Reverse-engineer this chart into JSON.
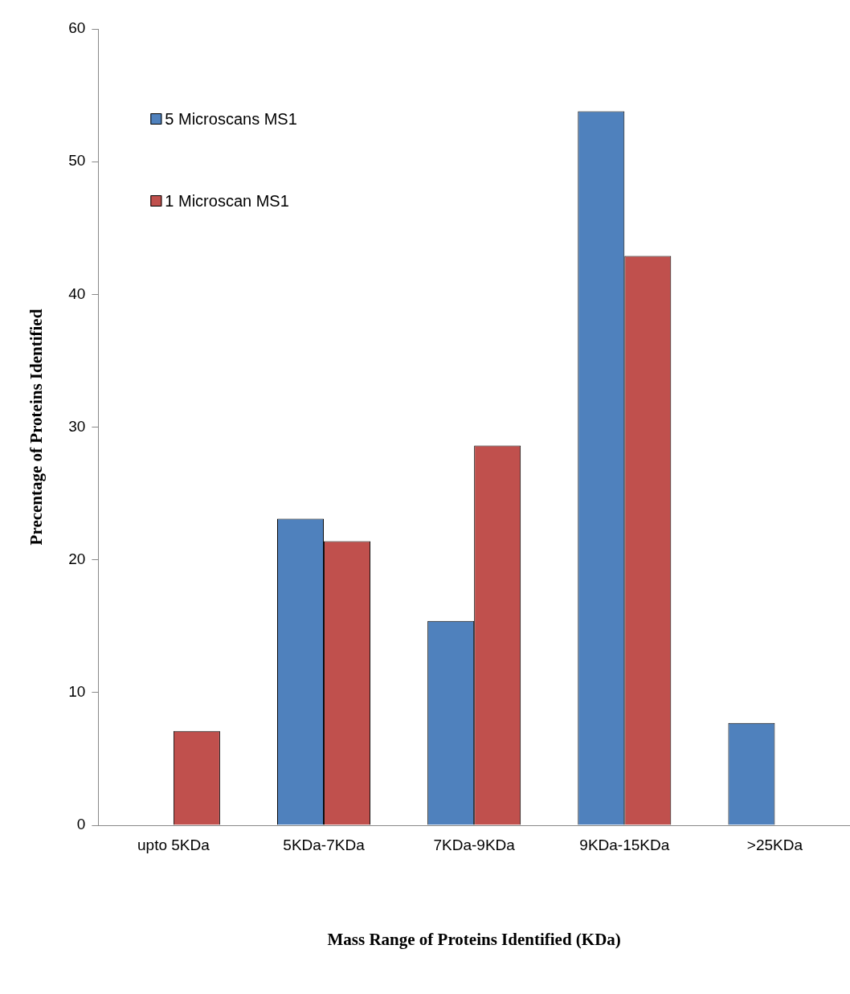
{
  "chart_data": {
    "type": "bar",
    "xlabel": "Mass Range of Proteins Identified (KDa)",
    "ylabel": "Precentage of Proteins Identified",
    "categories": [
      "upto 5KDa",
      "5KDa-7KDa",
      "7KDa-9KDa",
      "9KDa-15KDa",
      ">25KDa"
    ],
    "series": [
      {
        "name": "5 Microscans MS1",
        "color": "#4f81bd",
        "values": [
          0,
          23.1,
          15.4,
          53.8,
          7.7
        ]
      },
      {
        "name": "1 Microscan MS1",
        "color": "#c0504d",
        "values": [
          7.1,
          21.4,
          28.6,
          42.9,
          0
        ]
      }
    ],
    "ylim": [
      0,
      60
    ],
    "yticks": [
      0,
      10,
      20,
      30,
      40,
      50,
      60
    ],
    "grid": false,
    "legend": "top left"
  }
}
